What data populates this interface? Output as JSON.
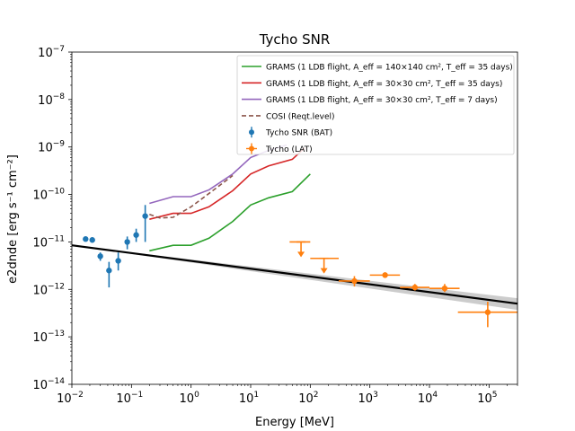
{
  "chart_data": {
    "type": "line",
    "title": "Tycho SNR",
    "xlabel": "Energy [MeV]",
    "ylabel": "e2dnde [erg s⁻¹ cm⁻²]",
    "xscale": "log",
    "yscale": "log",
    "xlim": [
      0.01,
      300000
    ],
    "ylim": [
      1e-14,
      1e-07
    ],
    "grid": false,
    "legend_position": "top-right",
    "x_ticks": [
      {
        "value": 0.01,
        "base": "10",
        "exp": "−2"
      },
      {
        "value": 0.1,
        "base": "10",
        "exp": "−1"
      },
      {
        "value": 1,
        "base": "10",
        "exp": "0"
      },
      {
        "value": 10,
        "base": "10",
        "exp": "1"
      },
      {
        "value": 100,
        "base": "10",
        "exp": "2"
      },
      {
        "value": 1000,
        "base": "10",
        "exp": "3"
      },
      {
        "value": 10000,
        "base": "10",
        "exp": "4"
      },
      {
        "value": 100000,
        "base": "10",
        "exp": "5"
      }
    ],
    "y_ticks": [
      {
        "value": 1e-14,
        "base": "10",
        "exp": "−14"
      },
      {
        "value": 1e-13,
        "base": "10",
        "exp": "−13"
      },
      {
        "value": 1e-12,
        "base": "10",
        "exp": "−12"
      },
      {
        "value": 1e-11,
        "base": "10",
        "exp": "−11"
      },
      {
        "value": 1e-10,
        "base": "10",
        "exp": "−10"
      },
      {
        "value": 1e-09,
        "base": "10",
        "exp": "−9"
      },
      {
        "value": 1e-08,
        "base": "10",
        "exp": "−8"
      },
      {
        "value": 1e-07,
        "base": "10",
        "exp": "−7"
      }
    ],
    "series": [
      {
        "name": "GRAMS (1 LDB flight, A_eff = 140×140 cm², T_eff = 35 days)",
        "kind": "line",
        "color": "#2ca02c",
        "x": [
          0.2,
          0.5,
          1,
          2,
          5,
          10,
          20,
          50,
          100
        ],
        "y": [
          6.5e-12,
          8.5e-12,
          8.5e-12,
          1.2e-11,
          2.7e-11,
          6e-11,
          8.5e-11,
          1.15e-10,
          2.7e-10
        ]
      },
      {
        "name": "GRAMS (1 LDB flight, A_eff = 30×30 cm², T_eff = 35 days)",
        "kind": "line",
        "color": "#d62728",
        "x": [
          0.2,
          0.5,
          1,
          2,
          5,
          10,
          20,
          50,
          80
        ],
        "y": [
          3e-11,
          4e-11,
          4e-11,
          5.5e-11,
          1.2e-10,
          2.7e-10,
          4e-10,
          5.5e-10,
          9.5e-10
        ]
      },
      {
        "name": "GRAMS (1 LDB flight, A_eff = 30×30 cm², T_eff = 7 days)",
        "kind": "line",
        "color": "#9467bd",
        "x": [
          0.2,
          0.5,
          1,
          2,
          5,
          10,
          20,
          40
        ],
        "y": [
          6.5e-11,
          9e-11,
          9e-11,
          1.25e-10,
          2.7e-10,
          6e-10,
          8.5e-10,
          1.1e-09
        ]
      },
      {
        "name": "COSI (Reqt.level)",
        "kind": "dashed",
        "color": "#8c564b",
        "x": [
          0.2,
          0.3,
          0.5,
          1,
          2,
          5
        ],
        "y": [
          3.8e-11,
          3.2e-11,
          3.3e-11,
          5.5e-11,
          1.05e-10,
          2.5e-10
        ]
      },
      {
        "name": "Tycho SNR (BAT)",
        "kind": "errorbar",
        "color": "#1f77b4",
        "x": [
          0.017,
          0.022,
          0.03,
          0.042,
          0.06,
          0.085,
          0.12,
          0.17
        ],
        "y": [
          1.15e-11,
          1.1e-11,
          5e-12,
          2.5e-12,
          4e-12,
          1e-11,
          1.4e-11,
          3.5e-11
        ],
        "y_low": [
          1.1e-11,
          1.05e-11,
          4e-12,
          1.1e-12,
          2.5e-12,
          7e-12,
          1e-11,
          1e-11
        ],
        "y_high": [
          1.2e-11,
          1.15e-11,
          6e-12,
          3.8e-12,
          6e-12,
          1.3e-11,
          1.9e-11,
          6e-11
        ]
      },
      {
        "name": "Tycho (LAT)",
        "kind": "errorbar",
        "color": "#ff7f0e",
        "x": [
          70,
          170,
          550,
          1800,
          5700,
          18000,
          95000
        ],
        "x_low": [
          45,
          100,
          300,
          1000,
          3200,
          10000,
          30000
        ],
        "x_high": [
          100,
          300,
          1000,
          3200,
          10000,
          32000,
          300000
        ],
        "y": [
          1e-11,
          4.5e-12,
          1.5e-12,
          2e-12,
          1.1e-12,
          1.05e-12,
          3.3e-13
        ],
        "y_low": [
          8e-12,
          3.5e-12,
          1.15e-12,
          1.8e-12,
          9.5e-13,
          8.8e-13,
          1.6e-13
        ],
        "y_high": [
          1.1e-11,
          5e-12,
          1.9e-12,
          2.2e-12,
          1.3e-12,
          1.3e-12,
          5.5e-13
        ],
        "upper_limits": [
          true,
          true,
          false,
          false,
          false,
          false,
          false
        ]
      }
    ],
    "model": {
      "kind": "powerlaw",
      "color": "#000000",
      "band_color": "#bbbbbb",
      "x": [
        0.01,
        300000
      ],
      "y": [
        8.5e-12,
        5e-13
      ],
      "band_low": [
        8.5e-12,
        3.7e-13
      ],
      "band_high": [
        8.5e-12,
        6.5e-13
      ]
    }
  }
}
